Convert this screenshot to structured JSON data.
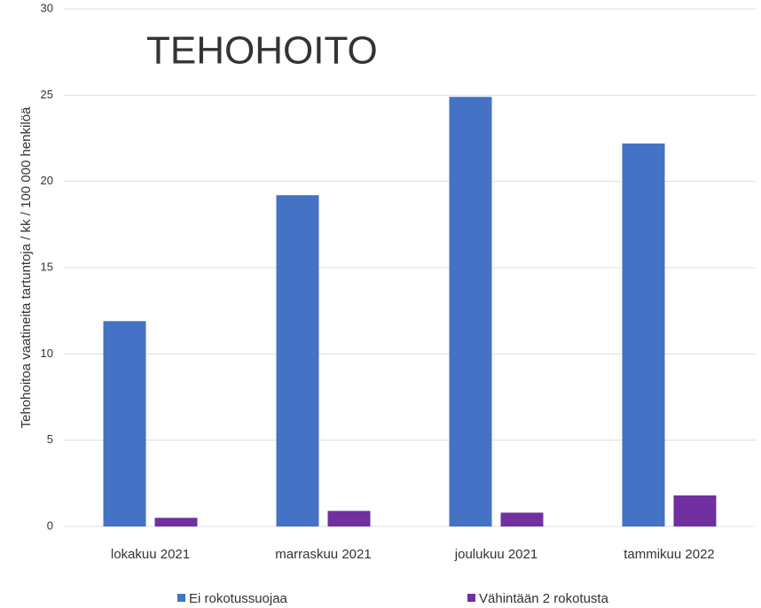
{
  "chart_data": {
    "type": "bar",
    "title": "TEHOHOITO",
    "y_label": "Tehohoitoa vaatineita tartuntoja / kk / 100 000 henkilöä",
    "categories": [
      "lokakuu 2021",
      "marraskuu 2021",
      "joulukuu 2021",
      "tammikuu 2022"
    ],
    "series": [
      {
        "name": "Ei rokotussuojaa",
        "color": "#4472c4",
        "values": [
          11.9,
          19.2,
          24.9,
          22.2
        ]
      },
      {
        "name": "Vähintään 2 rokotusta",
        "color": "#7030a0",
        "values": [
          0.5,
          0.9,
          0.8,
          1.8
        ]
      }
    ],
    "ylim": [
      0,
      30
    ],
    "yticks": [
      0,
      5,
      10,
      15,
      20,
      25,
      30
    ],
    "grid": true,
    "legend": "bottom"
  }
}
